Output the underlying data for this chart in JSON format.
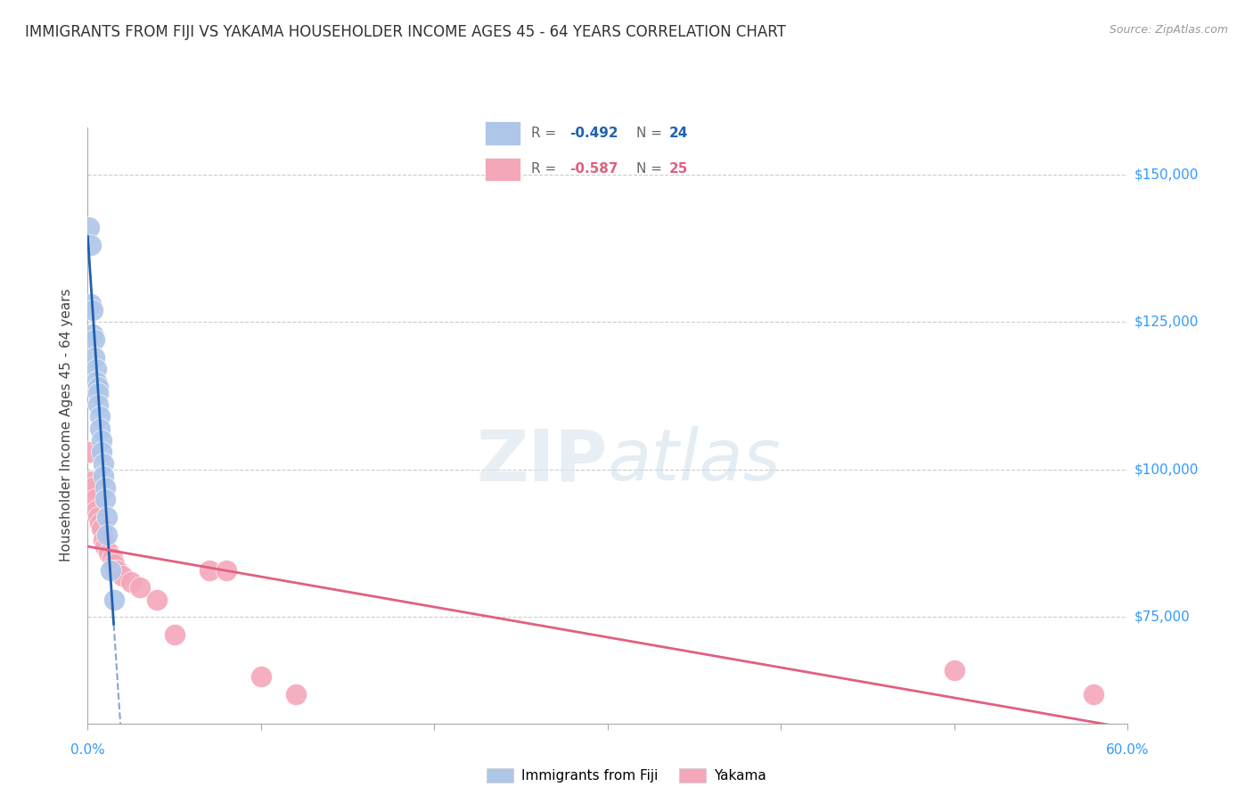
{
  "title": "IMMIGRANTS FROM FIJI VS YAKAMA HOUSEHOLDER INCOME AGES 45 - 64 YEARS CORRELATION CHART",
  "source": "Source: ZipAtlas.com",
  "ylabel": "Householder Income Ages 45 - 64 years",
  "ytick_labels": [
    "$75,000",
    "$100,000",
    "$125,000",
    "$150,000"
  ],
  "ytick_values": [
    75000,
    100000,
    125000,
    150000
  ],
  "watermark_zip": "ZIP",
  "watermark_atlas": "atlas",
  "legend_fiji_R": "-0.492",
  "legend_fiji_N": "24",
  "legend_yakama_R": "-0.587",
  "legend_yakama_N": "25",
  "fiji_color": "#aec6e8",
  "yakama_color": "#f4a7b9",
  "fiji_line_color": "#2060b0",
  "yakama_line_color": "#e06080",
  "fiji_x": [
    0.001,
    0.002,
    0.002,
    0.003,
    0.003,
    0.004,
    0.004,
    0.005,
    0.005,
    0.006,
    0.006,
    0.006,
    0.007,
    0.007,
    0.008,
    0.008,
    0.009,
    0.009,
    0.01,
    0.01,
    0.011,
    0.011,
    0.013,
    0.015
  ],
  "fiji_y": [
    141000,
    138000,
    128000,
    127000,
    123000,
    122000,
    119000,
    117000,
    115000,
    114000,
    113000,
    111000,
    109000,
    107000,
    105000,
    103000,
    101000,
    99000,
    97000,
    95000,
    92000,
    89000,
    83000,
    78000
  ],
  "yakama_x": [
    0.001,
    0.002,
    0.003,
    0.004,
    0.005,
    0.006,
    0.007,
    0.008,
    0.009,
    0.01,
    0.012,
    0.014,
    0.015,
    0.017,
    0.02,
    0.025,
    0.03,
    0.04,
    0.05,
    0.07,
    0.08,
    0.1,
    0.12,
    0.5,
    0.58
  ],
  "yakama_y": [
    103000,
    98000,
    97000,
    95000,
    93000,
    92000,
    91000,
    90000,
    88000,
    87000,
    86000,
    85000,
    84000,
    83000,
    82000,
    81000,
    80000,
    78000,
    72000,
    83000,
    83000,
    65000,
    62000,
    66000,
    62000
  ],
  "xmin": 0.0,
  "xmax": 0.6,
  "ymin": 57000,
  "ymax": 158000,
  "background_color": "#ffffff",
  "grid_color": "#cccccc",
  "fiji_line_xstart": 0.0,
  "fiji_line_xend_solid": 0.015,
  "fiji_line_xend_dashed": 0.13,
  "yakama_line_xstart": 0.0,
  "yakama_line_xend": 0.6
}
